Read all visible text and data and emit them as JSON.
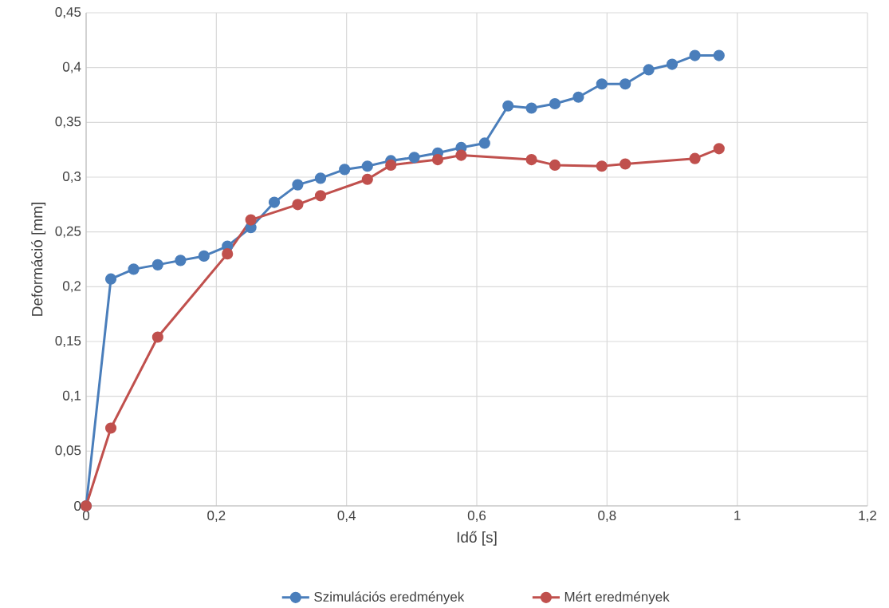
{
  "chart_data": {
    "type": "line",
    "xlabel": "Idő [s]",
    "ylabel": "Deformáció [mm]",
    "xlim": [
      0,
      1.2
    ],
    "ylim": [
      0,
      0.45
    ],
    "xticks": [
      0,
      {
        "value": 0.2,
        "label": "0,2"
      },
      {
        "value": 0.4,
        "label": "0,4"
      },
      {
        "value": 0.6,
        "label": "0,6"
      },
      {
        "value": 0.8,
        "label": "0,8"
      },
      1,
      {
        "value": 1.2,
        "label": "1,2"
      }
    ],
    "yticks": [
      0,
      {
        "value": 0.05,
        "label": "0,05"
      },
      {
        "value": 0.1,
        "label": "0,1"
      },
      {
        "value": 0.15,
        "label": "0,15"
      },
      {
        "value": 0.2,
        "label": "0,2"
      },
      {
        "value": 0.25,
        "label": "0,25"
      },
      {
        "value": 0.3,
        "label": "0,3"
      },
      {
        "value": 0.35,
        "label": "0,35"
      },
      {
        "value": 0.4,
        "label": "0,4"
      },
      {
        "value": 0.45,
        "label": "0,45"
      }
    ],
    "grid": true,
    "legend": "bottom",
    "marker": "circle",
    "line_style": "solid",
    "series": [
      {
        "name": "Szimulációs eredmények",
        "color": "#4a7ebb",
        "x": [
          0,
          0.038,
          0.073,
          0.11,
          0.145,
          0.181,
          0.217,
          0.253,
          0.289,
          0.325,
          0.36,
          0.397,
          0.432,
          0.468,
          0.504,
          0.54,
          0.576,
          0.612,
          0.648,
          0.684,
          0.72,
          0.756,
          0.792,
          0.828,
          0.864,
          0.9,
          0.935,
          0.972
        ],
        "values": [
          0,
          0.207,
          0.216,
          0.22,
          0.224,
          0.228,
          0.237,
          0.254,
          0.277,
          0.293,
          0.299,
          0.307,
          0.31,
          0.315,
          0.318,
          0.322,
          0.327,
          0.331,
          0.365,
          0.363,
          0.367,
          0.373,
          0.385,
          0.385,
          0.398,
          0.403,
          0.411,
          0.411
        ]
      },
      {
        "name": "Mért eredmények",
        "color": "#c0504d",
        "x": [
          0,
          0.038,
          0.11,
          0.217,
          0.253,
          0.325,
          0.36,
          0.432,
          0.468,
          0.54,
          0.576,
          0.684,
          0.72,
          0.792,
          0.828,
          0.935,
          0.972
        ],
        "values": [
          0,
          0.071,
          0.154,
          0.23,
          0.261,
          0.275,
          0.283,
          0.298,
          0.311,
          0.316,
          0.32,
          0.316,
          0.311,
          0.31,
          0.312,
          0.317,
          0.326
        ]
      }
    ]
  }
}
